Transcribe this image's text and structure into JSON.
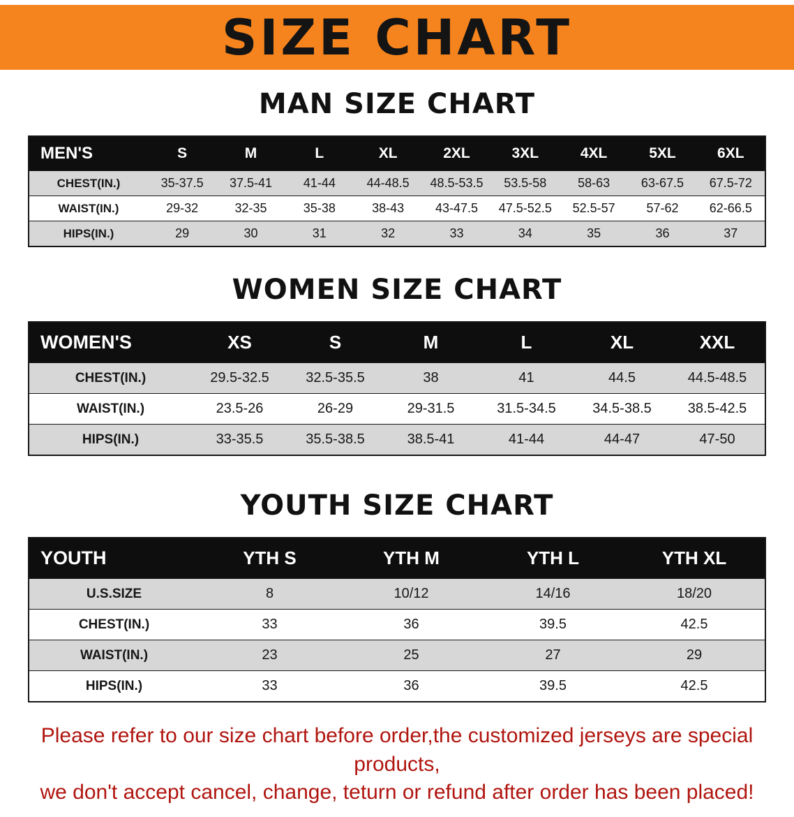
{
  "banner": {
    "title": "SIZE CHART"
  },
  "colors": {
    "banner_bg": "#f5841e",
    "table_header_bg": "#0e0e0e",
    "row_alt_bg": "#d7d7d7",
    "note_text": "#b0150f"
  },
  "men": {
    "heading": "MAN SIZE CHART",
    "table": {
      "header": [
        "MEN'S",
        "S",
        "M",
        "L",
        "XL",
        "2XL",
        "3XL",
        "4XL",
        "5XL",
        "6XL"
      ],
      "rows": [
        [
          "CHEST(IN.)",
          "35-37.5",
          "37.5-41",
          "41-44",
          "44-48.5",
          "48.5-53.5",
          "53.5-58",
          "58-63",
          "63-67.5",
          "67.5-72"
        ],
        [
          "WAIST(IN.)",
          "29-32",
          "32-35",
          "35-38",
          "38-43",
          "43-47.5",
          "47.5-52.5",
          "52.5-57",
          "57-62",
          "62-66.5"
        ],
        [
          "HIPS(IN.)",
          "29",
          "30",
          "31",
          "32",
          "33",
          "34",
          "35",
          "36",
          "37"
        ]
      ]
    }
  },
  "women": {
    "heading": "WOMEN SIZE CHART",
    "table": {
      "header": [
        "WOMEN'S",
        "XS",
        "S",
        "M",
        "L",
        "XL",
        "XXL"
      ],
      "rows": [
        [
          "CHEST(IN.)",
          "29.5-32.5",
          "32.5-35.5",
          "38",
          "41",
          "44.5",
          "44.5-48.5"
        ],
        [
          "WAIST(IN.)",
          "23.5-26",
          "26-29",
          "29-31.5",
          "31.5-34.5",
          "34.5-38.5",
          "38.5-42.5"
        ],
        [
          "HIPS(IN.)",
          "33-35.5",
          "35.5-38.5",
          "38.5-41",
          "41-44",
          "44-47",
          "47-50"
        ]
      ]
    }
  },
  "youth": {
    "heading": "YOUTH SIZE CHART",
    "table": {
      "header": [
        "YOUTH",
        "YTH S",
        "YTH M",
        "YTH L",
        "YTH XL"
      ],
      "rows": [
        [
          "U.S.SIZE",
          "8",
          "10/12",
          "14/16",
          "18/20"
        ],
        [
          "CHEST(IN.)",
          "33",
          "36",
          "39.5",
          "42.5"
        ],
        [
          "WAIST(IN.)",
          "23",
          "25",
          "27",
          "29"
        ],
        [
          "HIPS(IN.)",
          "33",
          "36",
          "39.5",
          "42.5"
        ]
      ]
    }
  },
  "note": {
    "line1": "Please refer to our size chart before order,the customized jerseys are special products,",
    "line2": "we don't accept cancel, change, teturn or refund after order has been placed!"
  }
}
